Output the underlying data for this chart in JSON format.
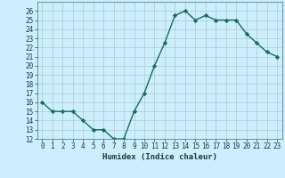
{
  "x": [
    0,
    1,
    2,
    3,
    4,
    5,
    6,
    7,
    8,
    9,
    10,
    11,
    12,
    13,
    14,
    15,
    16,
    17,
    18,
    19,
    20,
    21,
    22,
    23
  ],
  "y": [
    16,
    15,
    15,
    15,
    14,
    13,
    13,
    12,
    12,
    15,
    17,
    20,
    22.5,
    25.5,
    26,
    25,
    25.5,
    25,
    25,
    25,
    23.5,
    22.5,
    21.5,
    21
  ],
  "line_color": "#1a6b5a",
  "marker": "D",
  "marker_size": 2.2,
  "bg_color": "#cceeff",
  "grid_color": "#aacccc",
  "xlabel": "Humidex (Indice chaleur)",
  "xlim": [
    -0.5,
    23.5
  ],
  "ylim": [
    12,
    27
  ],
  "yticks": [
    12,
    13,
    14,
    15,
    16,
    17,
    18,
    19,
    20,
    21,
    22,
    23,
    24,
    25,
    26
  ],
  "xticks": [
    0,
    1,
    2,
    3,
    4,
    5,
    6,
    7,
    8,
    9,
    10,
    11,
    12,
    13,
    14,
    15,
    16,
    17,
    18,
    19,
    20,
    21,
    22,
    23
  ],
  "xtick_labels": [
    "0",
    "1",
    "2",
    "3",
    "4",
    "5",
    "6",
    "7",
    "8",
    "9",
    "10",
    "11",
    "12",
    "13",
    "14",
    "15",
    "16",
    "17",
    "18",
    "19",
    "20",
    "21",
    "22",
    "23"
  ],
  "tick_fontsize": 5.5,
  "xlabel_fontsize": 6.5,
  "line_width": 1.0
}
